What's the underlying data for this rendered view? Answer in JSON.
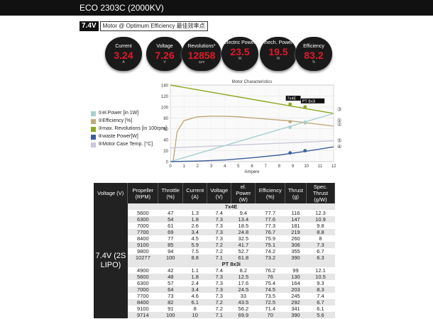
{
  "header": {
    "title": "ECO 2303C (2000KV)"
  },
  "subheader": {
    "voltage": "7.4V",
    "label": "Motor @ Optimum Efficiency  最佳效率点"
  },
  "metrics": [
    {
      "label": "Current",
      "value": "3.24",
      "unit": "A"
    },
    {
      "label": "Voltage",
      "value": "7.26",
      "unit": "V"
    },
    {
      "label": "Revolutions*",
      "value": "12858",
      "unit": "rpm"
    },
    {
      "label": "electric Power",
      "value": "23.5",
      "unit": "W"
    },
    {
      "label": "mech. Power",
      "value": "19.5",
      "unit": "W"
    },
    {
      "label": "Efficiency",
      "value": "83.2",
      "unit": "%"
    }
  ],
  "legend": [
    {
      "label": "①el.Power [in 1W]",
      "color": "#a9cfcf"
    },
    {
      "label": "②Efficiency [%]",
      "color": "#bfaa7a"
    },
    {
      "label": "③max. Revolutions [in 100rpm]",
      "color": "#8aa81e"
    },
    {
      "label": "④waste Power[W]",
      "color": "#3b5f9a"
    },
    {
      "label": "⑤Motor Case Temp. [°C]",
      "color": "#c8c8d8"
    }
  ],
  "chart_data": {
    "type": "line",
    "title": "Motor Characteristics",
    "xlabel": "Ampere",
    "ylabel": "",
    "xlim": [
      0,
      12
    ],
    "ylim": [
      0,
      140
    ],
    "x_ticks": [
      0,
      1,
      2,
      3,
      4,
      5,
      6,
      7,
      8,
      9,
      10,
      11,
      12
    ],
    "y_ticks": [
      0,
      20,
      40,
      60,
      80,
      100,
      120,
      140
    ],
    "series": [
      {
        "name": "max. Revolutions",
        "color": "#8aa81e",
        "x": [
          0,
          12
        ],
        "y": [
          140,
          88
        ]
      },
      {
        "name": "Efficiency",
        "color": "#bfaa7a",
        "x": [
          0.2,
          0.5,
          1,
          2,
          3,
          4,
          5,
          6,
          7,
          8,
          9,
          10,
          11,
          12
        ],
        "y": [
          0,
          55,
          75,
          82,
          83,
          83,
          82,
          80,
          78,
          76,
          74,
          71,
          68,
          65
        ]
      },
      {
        "name": "el.Power",
        "color": "#a9cfcf",
        "x": [
          0,
          12
        ],
        "y": [
          0,
          88
        ]
      },
      {
        "name": "Motor Case Temp.",
        "color": "#c8c8d8",
        "x": [
          0,
          12
        ],
        "y": [
          25,
          38
        ]
      },
      {
        "name": "waste Power",
        "color": "#3b5f9a",
        "x": [
          0,
          2,
          4,
          6,
          8,
          10,
          12
        ],
        "y": [
          0,
          1,
          3,
          7,
          12,
          19,
          27
        ]
      }
    ],
    "markers": [
      {
        "label": "7x4E",
        "x": 8.8,
        "series_points": [
          105,
          73,
          63,
          16
        ]
      },
      {
        "label": "PT 8x3i",
        "x": 9.9,
        "series_points": [
          100,
          71,
          72,
          20
        ]
      }
    ],
    "end_labels": [
      "①",
      "②",
      "③",
      "④",
      "⑤"
    ]
  },
  "table": {
    "headers": [
      "Voltage (V)",
      "Propeller (RPM)",
      "Throttle (%)",
      "Current (A)",
      "Voltage (V)",
      "el. Power (W)",
      "Efficiency (%)",
      "Thrust (g)",
      "Spec. Thrust (g/W)"
    ],
    "voltage_cell": "7.4V (2S LIPO)",
    "groups": [
      {
        "name": "7x4E",
        "rows": [
          [
            "5600",
            "47",
            "1.3",
            "7.4",
            "9.4",
            "77.7",
            "116",
            "12.3"
          ],
          [
            "6300",
            "54",
            "1.8",
            "7.3",
            "13.4",
            "77.6",
            "147",
            "10.9"
          ],
          [
            "7000",
            "61",
            "2.6",
            "7.3",
            "18.5",
            "77.3",
            "181",
            "9.8"
          ],
          [
            "7700",
            "69",
            "3.4",
            "7.3",
            "24.8",
            "76.7",
            "219",
            "8.8"
          ],
          [
            "8400",
            "77",
            "4.5",
            "7.3",
            "32.5",
            "75.9",
            "260",
            "8"
          ],
          [
            "9100",
            "85",
            "5.9",
            "7.2",
            "41.7",
            "75.1",
            "306",
            "7.3"
          ],
          [
            "9800",
            "94",
            "7.5",
            "7.2",
            "52.7",
            "74.2",
            "355",
            "6.7"
          ],
          [
            "10277",
            "100",
            "8.8",
            "7.1",
            "61.8",
            "73.2",
            "390",
            "6.3"
          ]
        ]
      },
      {
        "name": "PT 8x3i",
        "rows": [
          [
            "4900",
            "42",
            "1.1",
            "7.4",
            "8.2",
            "76.2",
            "99",
            "12.1"
          ],
          [
            "5600",
            "48",
            "1.8",
            "7.3",
            "12.5",
            "76",
            "130",
            "10.5"
          ],
          [
            "6300",
            "57",
            "2.4",
            "7.3",
            "17.6",
            "75.4",
            "164",
            "9.3"
          ],
          [
            "7000",
            "64",
            "3.4",
            "7.3",
            "24.5",
            "74.5",
            "203",
            "8.3"
          ],
          [
            "7700",
            "73",
            "4.6",
            "7.3",
            "33",
            "73.5",
            "245",
            "7.4"
          ],
          [
            "8400",
            "82",
            "6.1",
            "7.2",
            "43.5",
            "72.5",
            "292",
            "6.7"
          ],
          [
            "9100",
            "91",
            "8",
            "7.2",
            "56.2",
            "71.4",
            "341",
            "6.1"
          ],
          [
            "9714",
            "100",
            "10",
            "7.1",
            "69.9",
            "70",
            "390",
            "5.6"
          ]
        ]
      }
    ]
  }
}
